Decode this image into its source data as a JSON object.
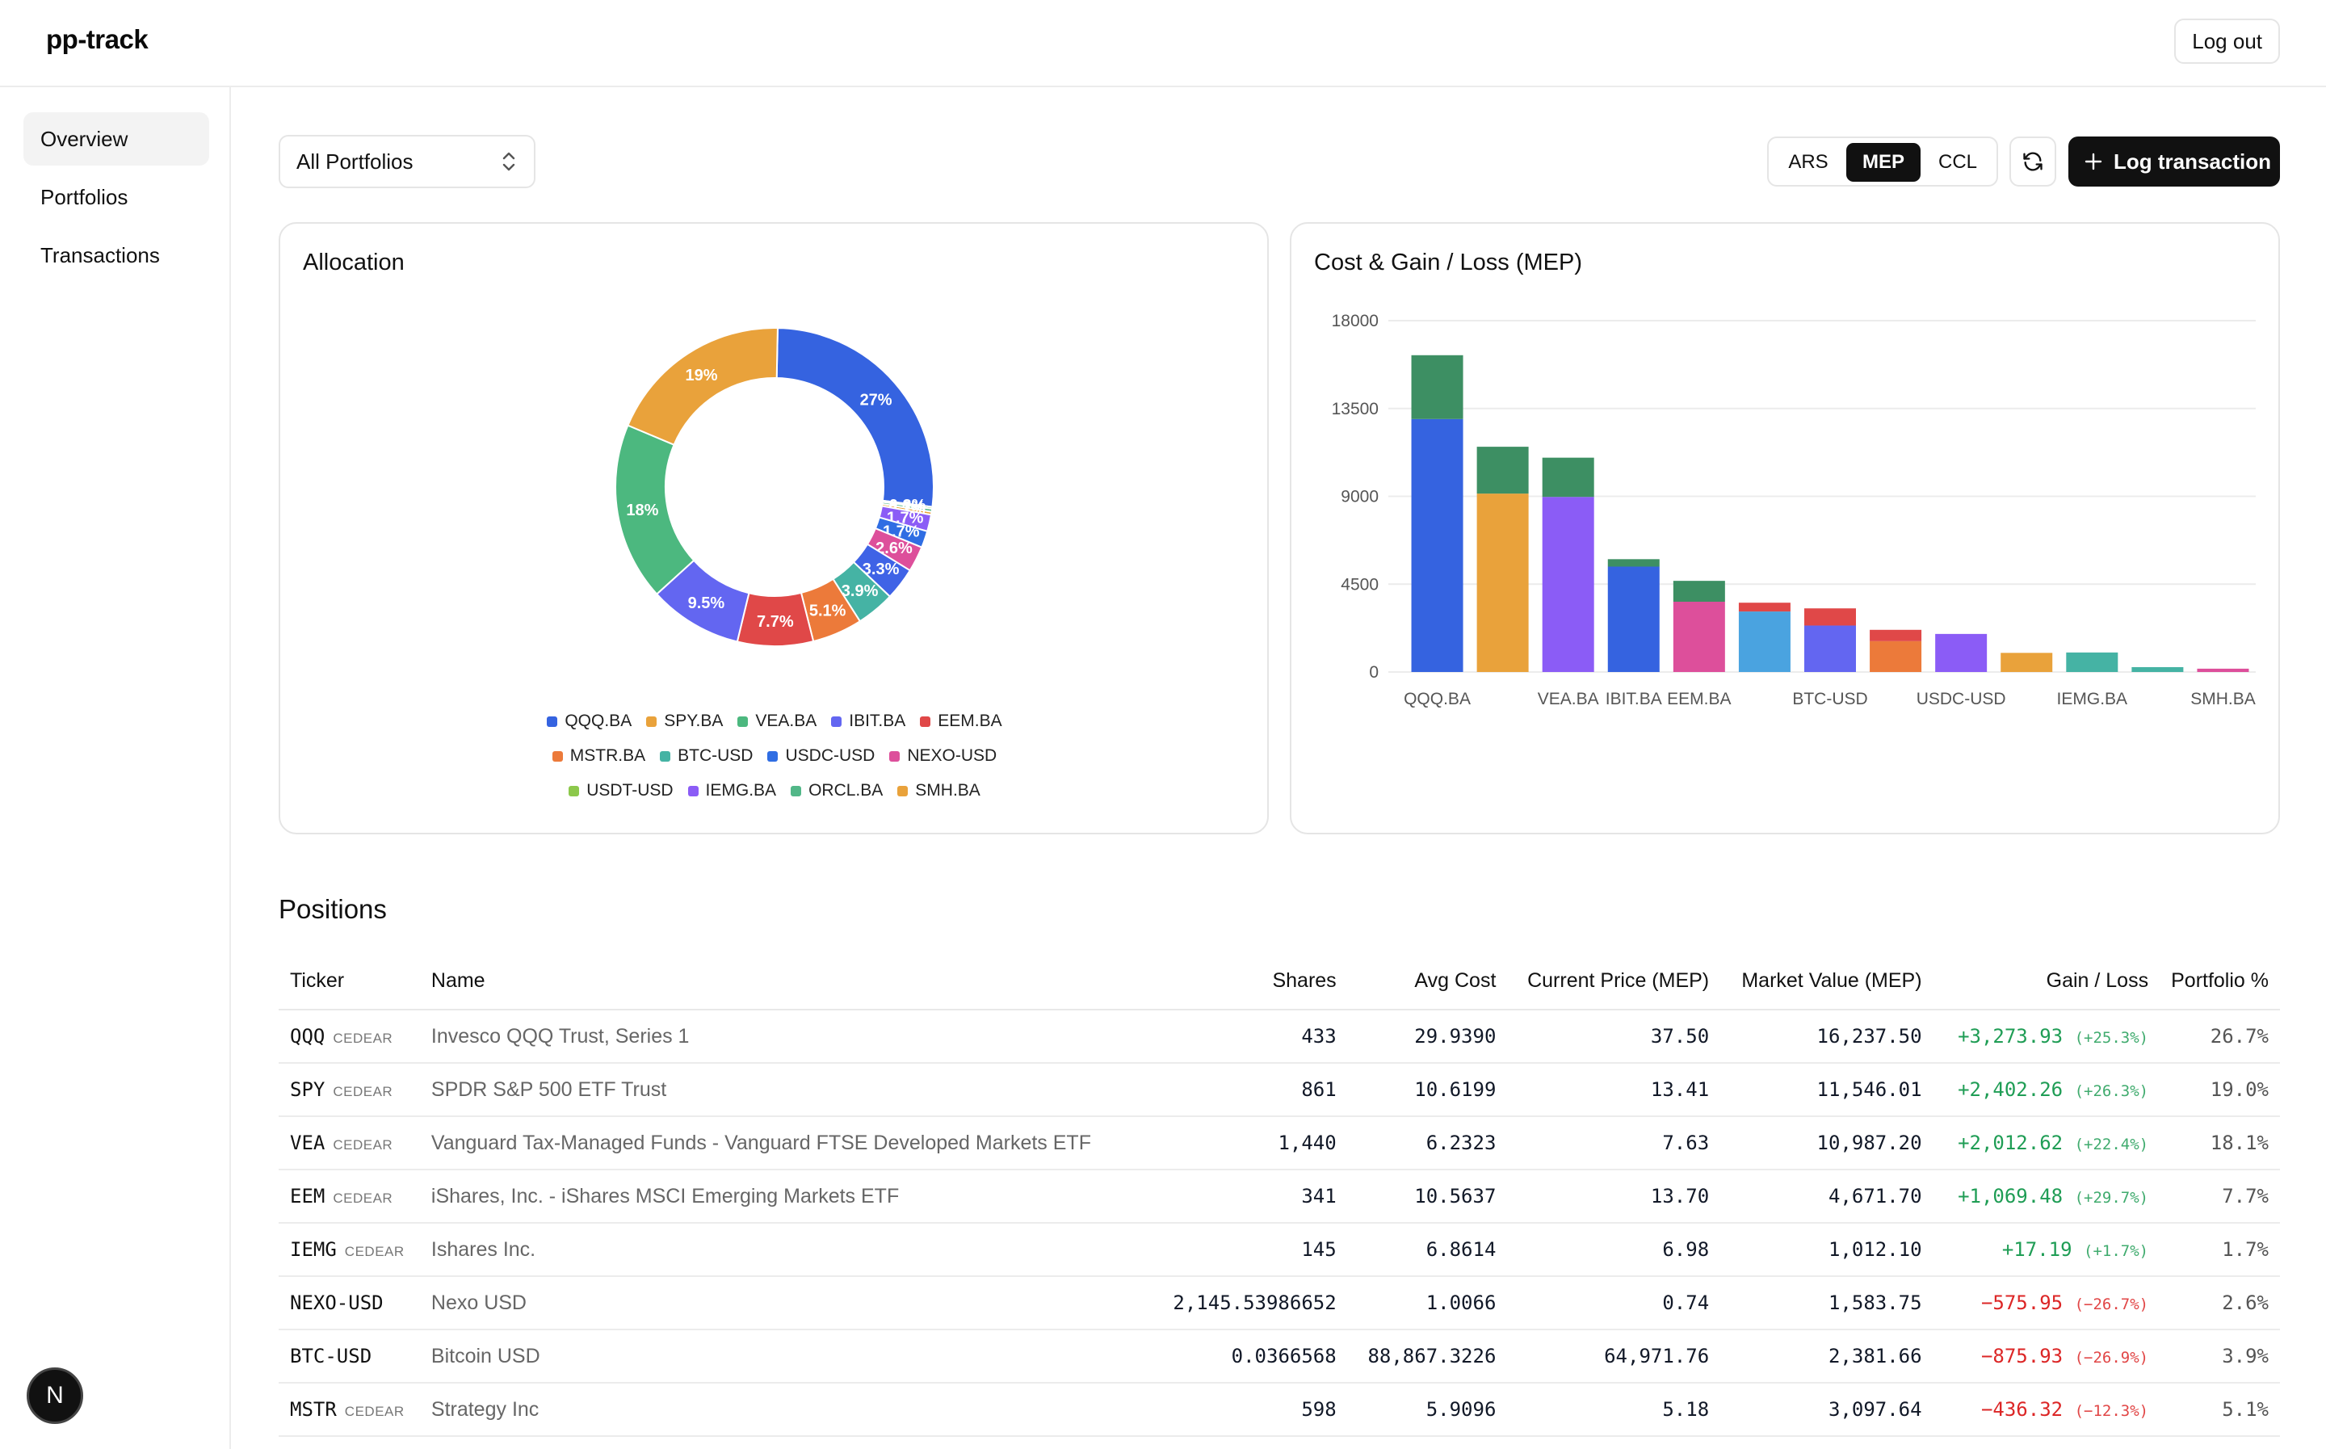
{
  "app": {
    "brand": "pp-track",
    "logout_label": "Log out"
  },
  "sidebar": {
    "items": [
      {
        "label": "Overview"
      },
      {
        "label": "Portfolios"
      },
      {
        "label": "Transactions"
      }
    ]
  },
  "fab": {
    "label": "N"
  },
  "controls": {
    "portfolio_select": "All Portfolios",
    "currency_options": [
      "ARS",
      "MEP",
      "CCL"
    ],
    "currency_selected": "MEP",
    "log_transaction_label": "Log transaction"
  },
  "allocation": {
    "title": "Allocation",
    "slices": [
      {
        "name": "QQQ.BA",
        "label": "27%",
        "value": 26.7,
        "color": "#3563e0"
      },
      {
        "name": "USDT-USD",
        "label": "0.2%",
        "value": 0.2,
        "color": "#8cc84b"
      },
      {
        "name": "ORCL.BA",
        "label": "0.3%",
        "value": 0.3,
        "color": "#52b788"
      },
      {
        "name": "SMH.BA",
        "label": "0.3%",
        "value": 0.3,
        "color": "#e9a23b"
      },
      {
        "name": "IEMG.BA",
        "label": "1.7%",
        "value": 1.7,
        "color": "#8b5cf6"
      },
      {
        "name": "USDC-USD",
        "label": "1.7%",
        "value": 1.7,
        "color": "#2f6de3"
      },
      {
        "name": "NEXO-USD",
        "label": "2.6%",
        "value": 2.6,
        "color": "#dd4f9b"
      },
      {
        "name": "IBIT.BA",
        "label": "3.3%",
        "value": 3.3,
        "color": "#3f63e6"
      },
      {
        "name": "BTC-USD",
        "label": "3.9%",
        "value": 3.9,
        "color": "#45b3a4"
      },
      {
        "name": "MSTR.BA",
        "label": "5.1%",
        "value": 5.1,
        "color": "#ec7a3a"
      },
      {
        "name": "EEM.BA",
        "label": "7.7%",
        "value": 7.7,
        "color": "#e04848"
      },
      {
        "name": "IBIT.BA",
        "label": "9.5%",
        "value": 9.5,
        "color": "#6366f1"
      },
      {
        "name": "VEA.BA",
        "label": "18%",
        "value": 18.1,
        "color": "#4cb87f"
      },
      {
        "name": "SPY.BA",
        "label": "19%",
        "value": 19.0,
        "color": "#e9a23b"
      }
    ],
    "legend": [
      [
        {
          "name": "QQQ.BA",
          "color": "#3563e0"
        },
        {
          "name": "SPY.BA",
          "color": "#e9a23b"
        },
        {
          "name": "VEA.BA",
          "color": "#4cb87f"
        },
        {
          "name": "IBIT.BA",
          "color": "#6366f1"
        },
        {
          "name": "EEM.BA",
          "color": "#e04848"
        }
      ],
      [
        {
          "name": "MSTR.BA",
          "color": "#ec7a3a"
        },
        {
          "name": "BTC-USD",
          "color": "#45b3a4"
        },
        {
          "name": "USDC-USD",
          "color": "#2f6de3"
        },
        {
          "name": "NEXO-USD",
          "color": "#dd4f9b"
        }
      ],
      [
        {
          "name": "USDT-USD",
          "color": "#8cc84b"
        },
        {
          "name": "IEMG.BA",
          "color": "#8b5cf6"
        },
        {
          "name": "ORCL.BA",
          "color": "#52b788"
        },
        {
          "name": "SMH.BA",
          "color": "#e9a23b"
        }
      ]
    ]
  },
  "chart_data": {
    "type": "bar",
    "title": "Cost & Gain / Loss (MEP)",
    "stacked": true,
    "ylim": [
      0,
      18000
    ],
    "yticks": [
      "0",
      "4500",
      "9000",
      "13500",
      "18000"
    ],
    "x_tick_labels": [
      "QQQ.BA",
      "",
      "VEA.BA",
      "IBIT.BA",
      "EEM.BA",
      "",
      "BTC-USD",
      "",
      "USDC-USD",
      "",
      "IEMG.BA",
      "",
      "SMH.BA"
    ],
    "bars": [
      {
        "cost": 12960,
        "gain": 3270,
        "cost_color": "#3563e0",
        "gain_color": "#3d8f63"
      },
      {
        "cost": 9140,
        "gain": 2400,
        "cost_color": "#e9a23b",
        "gain_color": "#3d8f63"
      },
      {
        "cost": 8970,
        "gain": 2010,
        "cost_color": "#8b5cf6",
        "gain_color": "#3d8f63"
      },
      {
        "cost": 5400,
        "gain": 380,
        "cost_color": "#3563e0",
        "gain_color": "#3d8f63"
      },
      {
        "cost": 3600,
        "gain": 1070,
        "cost_color": "#dd4f9b",
        "gain_color": "#3d8f63"
      },
      {
        "cost": 3100,
        "gain": 450,
        "cost_color": "#4aa3e0",
        "gain_color": "#e04848"
      },
      {
        "cost": 2380,
        "gain": 880,
        "cost_color": "#6366f1",
        "gain_color": "#e04848"
      },
      {
        "cost": 1580,
        "gain": 580,
        "cost_color": "#ec7a3a",
        "gain_color": "#e04848"
      },
      {
        "cost": 1950,
        "gain": 0,
        "cost_color": "#8b5cf6",
        "gain_color": "#3d8f63"
      },
      {
        "cost": 980,
        "gain": 0,
        "cost_color": "#e9a23b",
        "gain_color": "#3d8f63"
      },
      {
        "cost": 1000,
        "gain": 0,
        "cost_color": "#45b3a4",
        "gain_color": "#3d8f63"
      },
      {
        "cost": 250,
        "gain": 0,
        "cost_color": "#45b3a4",
        "gain_color": "#3d8f63"
      },
      {
        "cost": 170,
        "gain": 0,
        "cost_color": "#dd4f9b",
        "gain_color": "#3d8f63"
      }
    ]
  },
  "positions": {
    "title": "Positions",
    "columns": [
      "Ticker",
      "Name",
      "Shares",
      "Avg Cost",
      "Current Price (MEP)",
      "Market Value (MEP)",
      "Gain / Loss",
      "Portfolio %"
    ],
    "rows": [
      {
        "ticker": "QQQ",
        "tag": "CEDEAR",
        "name": "Invesco QQQ Trust, Series 1",
        "shares": "433",
        "avg_cost": "29.9390",
        "price": "37.50",
        "value": "16,237.50",
        "gain": "+3,273.93",
        "gain_pct": "(+25.3%)",
        "sign": "pos",
        "portfolio": "26.7%"
      },
      {
        "ticker": "SPY",
        "tag": "CEDEAR",
        "name": "SPDR S&P 500 ETF Trust",
        "shares": "861",
        "avg_cost": "10.6199",
        "price": "13.41",
        "value": "11,546.01",
        "gain": "+2,402.26",
        "gain_pct": "(+26.3%)",
        "sign": "pos",
        "portfolio": "19.0%"
      },
      {
        "ticker": "VEA",
        "tag": "CEDEAR",
        "name": "Vanguard Tax-Managed Funds - Vanguard FTSE Developed Markets ETF",
        "shares": "1,440",
        "avg_cost": "6.2323",
        "price": "7.63",
        "value": "10,987.20",
        "gain": "+2,012.62",
        "gain_pct": "(+22.4%)",
        "sign": "pos",
        "portfolio": "18.1%"
      },
      {
        "ticker": "EEM",
        "tag": "CEDEAR",
        "name": "iShares, Inc. - iShares MSCI Emerging Markets ETF",
        "shares": "341",
        "avg_cost": "10.5637",
        "price": "13.70",
        "value": "4,671.70",
        "gain": "+1,069.48",
        "gain_pct": "(+29.7%)",
        "sign": "pos",
        "portfolio": "7.7%"
      },
      {
        "ticker": "IEMG",
        "tag": "CEDEAR",
        "name": "Ishares Inc.",
        "shares": "145",
        "avg_cost": "6.8614",
        "price": "6.98",
        "value": "1,012.10",
        "gain": "+17.19",
        "gain_pct": "(+1.7%)",
        "sign": "pos",
        "portfolio": "1.7%"
      },
      {
        "ticker": "NEXO-USD",
        "tag": "",
        "name": "Nexo USD",
        "shares": "2,145.53986652",
        "avg_cost": "1.0066",
        "price": "0.74",
        "value": "1,583.75",
        "gain": "−575.95",
        "gain_pct": "(−26.7%)",
        "sign": "neg",
        "portfolio": "2.6%"
      },
      {
        "ticker": "BTC-USD",
        "tag": "",
        "name": "Bitcoin USD",
        "shares": "0.0366568",
        "avg_cost": "88,867.3226",
        "price": "64,971.76",
        "value": "2,381.66",
        "gain": "−875.93",
        "gain_pct": "(−26.9%)",
        "sign": "neg",
        "portfolio": "3.9%"
      },
      {
        "ticker": "MSTR",
        "tag": "CEDEAR",
        "name": "Strategy Inc",
        "shares": "598",
        "avg_cost": "5.9096",
        "price": "5.18",
        "value": "3,097.64",
        "gain": "−436.32",
        "gain_pct": "(−12.3%)",
        "sign": "neg",
        "portfolio": "5.1%"
      }
    ]
  }
}
